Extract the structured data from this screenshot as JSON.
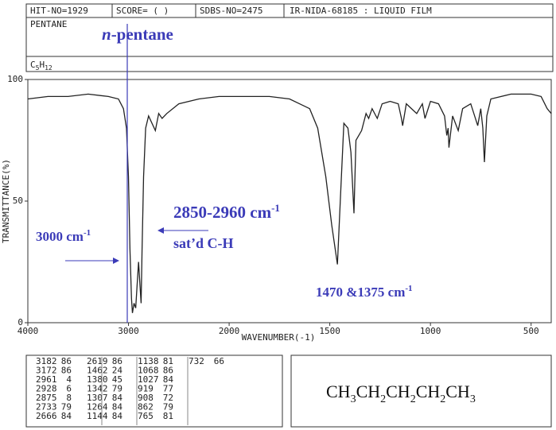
{
  "header": {
    "hit": "HIT-NO=1929",
    "score": "SCORE=  (   )",
    "sdbs": "SDBS-NO=2475",
    "method": "IR-NIDA-68185 : LIQUID FILM",
    "name": "PENTANE",
    "formula": [
      "C",
      "5",
      "H",
      "12"
    ]
  },
  "chart_data": {
    "type": "line",
    "ylabel": "TRANSMITTANCE(%)",
    "xlabel": "WAVENUMBER(-1)",
    "xlim": [
      4000,
      400
    ],
    "x_scale_break": 2000,
    "xticks": [
      4000,
      3000,
      2000,
      1500,
      1000,
      500
    ],
    "ylim": [
      0,
      100
    ],
    "yticks": [
      0,
      50,
      100
    ],
    "color": "#222222",
    "x": [
      4000,
      3800,
      3600,
      3400,
      3200,
      3100,
      3050,
      3020,
      3000,
      2985,
      2970,
      2961,
      2945,
      2928,
      2915,
      2900,
      2890,
      2875,
      2865,
      2850,
      2830,
      2800,
      2733,
      2700,
      2666,
      2619,
      2500,
      2300,
      2100,
      2000,
      1800,
      1700,
      1600,
      1560,
      1520,
      1490,
      1462,
      1445,
      1430,
      1410,
      1395,
      1380,
      1370,
      1342,
      1320,
      1307,
      1290,
      1264,
      1240,
      1200,
      1160,
      1144,
      1138,
      1120,
      1068,
      1040,
      1027,
      1000,
      960,
      930,
      919,
      912,
      908,
      890,
      862,
      840,
      800,
      765,
      750,
      740,
      732,
      720,
      700,
      600,
      500,
      450,
      420,
      400
    ],
    "values": [
      92,
      93,
      93,
      94,
      93,
      92,
      88,
      80,
      60,
      30,
      10,
      4,
      8,
      6,
      15,
      25,
      18,
      8,
      30,
      60,
      80,
      85,
      79,
      86,
      84,
      86,
      90,
      92,
      93,
      93,
      93,
      92,
      88,
      80,
      60,
      40,
      24,
      55,
      82,
      80,
      70,
      45,
      75,
      79,
      86,
      84,
      88,
      84,
      90,
      91,
      90,
      84,
      81,
      90,
      86,
      90,
      84,
      91,
      90,
      85,
      77,
      80,
      72,
      85,
      79,
      88,
      90,
      81,
      88,
      80,
      66,
      85,
      92,
      94,
      94,
      93,
      88,
      86
    ],
    "annotations": {
      "compound": [
        "n",
        "-pentane"
      ],
      "ch_range": [
        "2850-2960 cm",
        "-1"
      ],
      "ch_note": "sat’d C-H",
      "limit": [
        "3000 cm",
        "-1"
      ],
      "bend": [
        "1470 &1375 cm",
        "-1"
      ]
    }
  },
  "peak_table": [
    [
      3182,
      86
    ],
    [
      3172,
      86
    ],
    [
      2961,
      4
    ],
    [
      2928,
      6
    ],
    [
      2875,
      8
    ],
    [
      2733,
      79
    ],
    [
      2666,
      84
    ],
    [
      2619,
      86
    ],
    [
      1462,
      24
    ],
    [
      1380,
      45
    ],
    [
      1342,
      79
    ],
    [
      1307,
      84
    ],
    [
      1264,
      84
    ],
    [
      1144,
      84
    ],
    [
      1138,
      81
    ],
    [
      1068,
      86
    ],
    [
      1027,
      84
    ],
    [
      919,
      77
    ],
    [
      908,
      72
    ],
    [
      862,
      79
    ],
    [
      765,
      81
    ],
    [
      732,
      66
    ]
  ],
  "structure": [
    "CH",
    "3",
    "CH",
    "2",
    "CH",
    "2",
    "CH",
    "2",
    "CH",
    "3"
  ]
}
